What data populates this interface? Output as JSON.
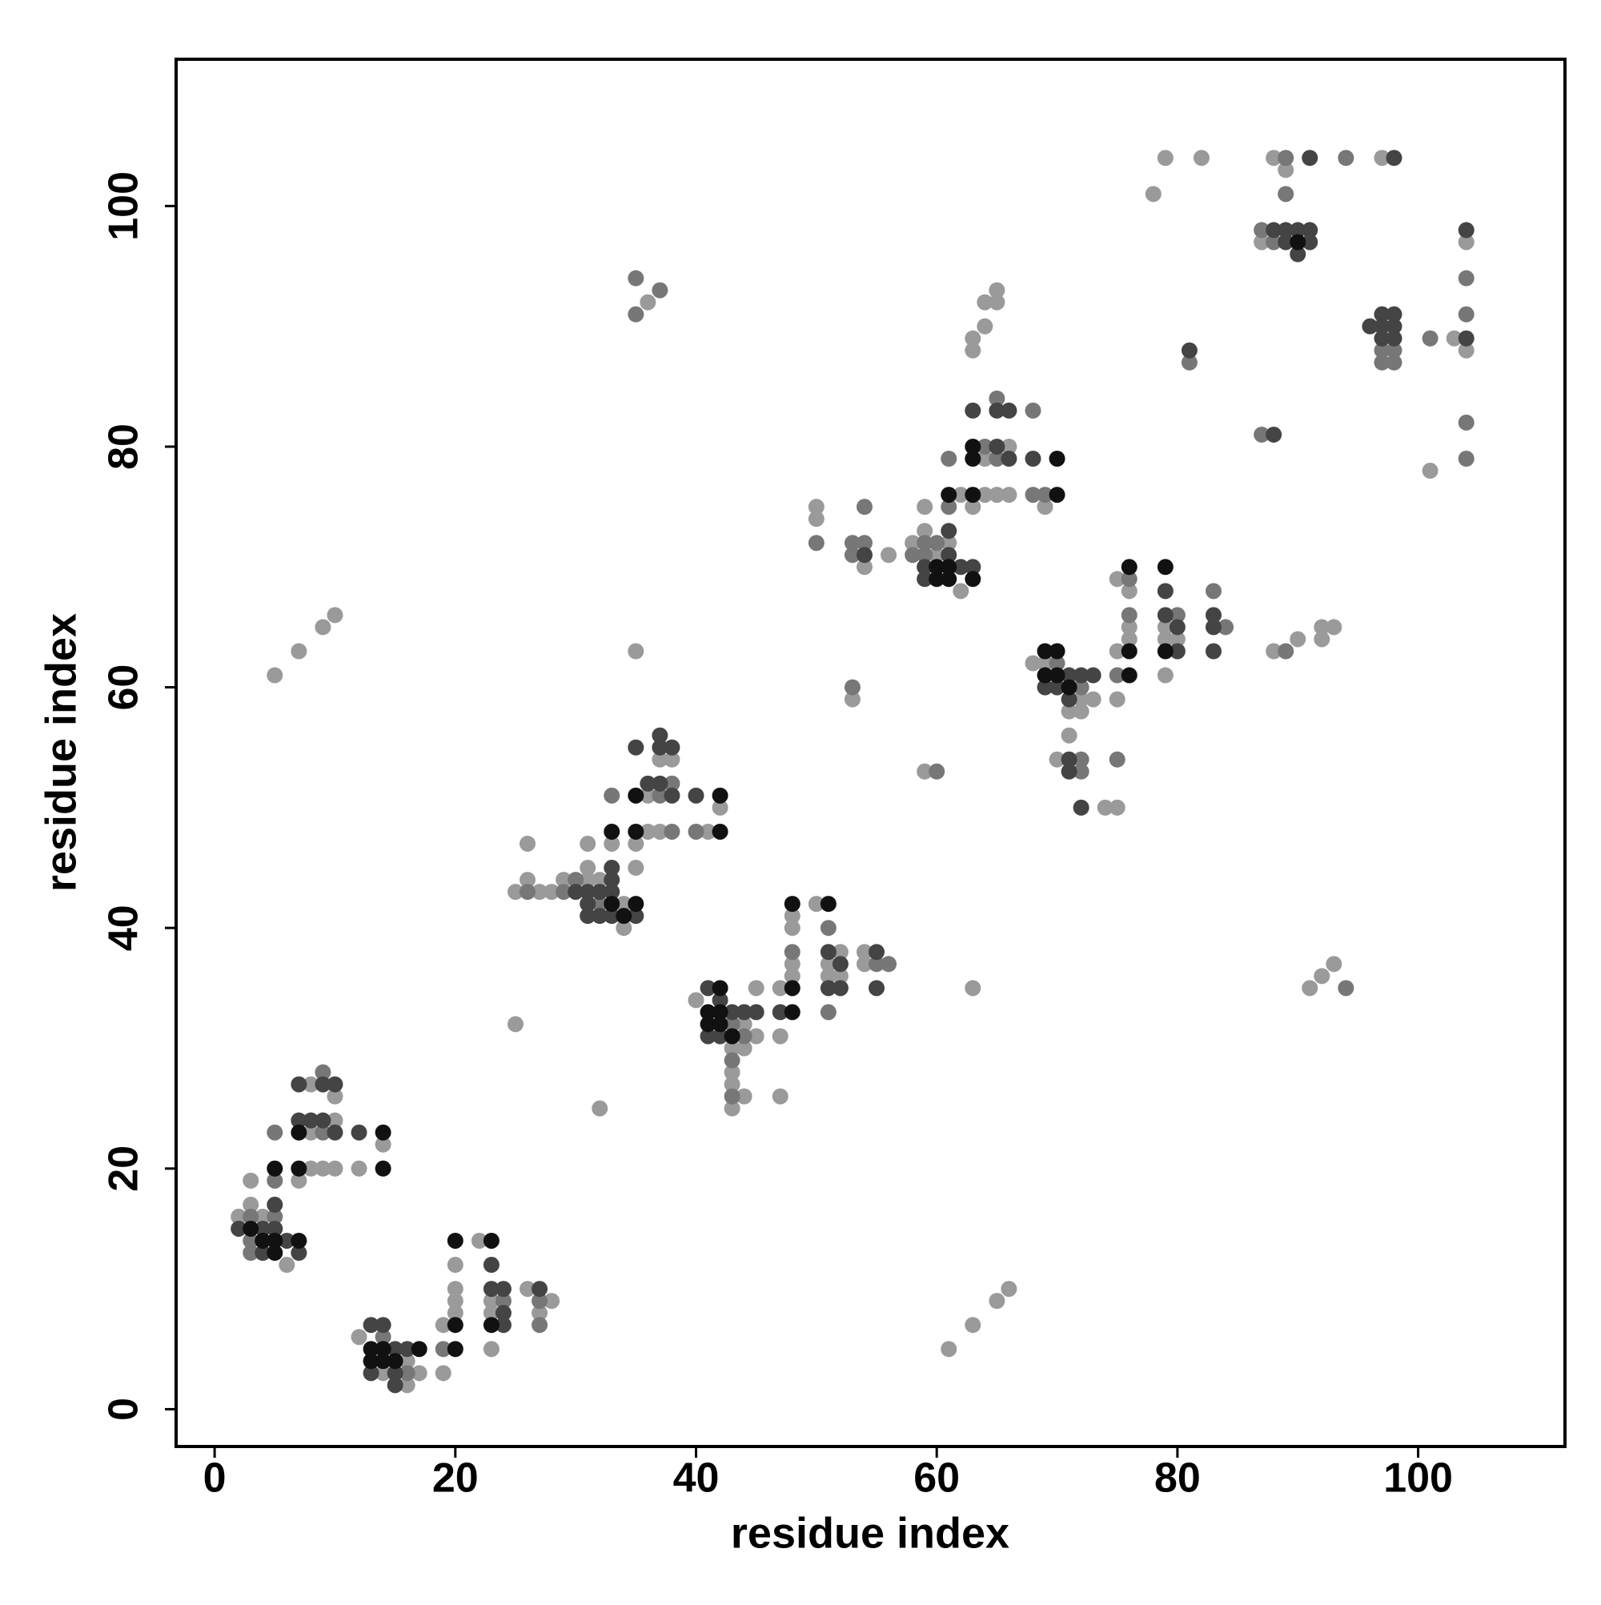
{
  "chart_data": {
    "type": "scatter",
    "xlabel": "residue index",
    "ylabel": "residue index",
    "xlim": [
      -3.2,
      112.2
    ],
    "ylim": [
      -3.1,
      112.2
    ],
    "xticks": [
      0,
      20,
      40,
      60,
      80,
      100
    ],
    "yticks": [
      0,
      20,
      40,
      60,
      80,
      100
    ],
    "series": [
      {
        "color": "#9a9a9a",
        "x": [
          2,
          3,
          3,
          4,
          6,
          7,
          8,
          8,
          8,
          9,
          10,
          10,
          10,
          12,
          14,
          12,
          14,
          16,
          16,
          17,
          19,
          19,
          20,
          20,
          20,
          20,
          22,
          23,
          23,
          23,
          26,
          27,
          28,
          25,
          26,
          26,
          27,
          28,
          29,
          31,
          31,
          31,
          32,
          33,
          34,
          34,
          35,
          35,
          36,
          36,
          37,
          37,
          38,
          41,
          42,
          35,
          36,
          5,
          7,
          9,
          10,
          25,
          32,
          40,
          43,
          43,
          43,
          43,
          44,
          44,
          44,
          45,
          45,
          47,
          47,
          47,
          48,
          48,
          48,
          48,
          50,
          51,
          51,
          52,
          52,
          54,
          54,
          50,
          50,
          54,
          56,
          58,
          59,
          59,
          60,
          61,
          62,
          53,
          59,
          62,
          63,
          63,
          63,
          64,
          64,
          64,
          64,
          65,
          65,
          65,
          66,
          66,
          69,
          63,
          61,
          63,
          65,
          66,
          68,
          69,
          71,
          71,
          70,
          72,
          72,
          73,
          74,
          75,
          75,
          75,
          75,
          76,
          76,
          76,
          79,
          79,
          79,
          80,
          78,
          79,
          82,
          88,
          90,
          92,
          92,
          93,
          91,
          92,
          93,
          88,
          89,
          97,
          87,
          103,
          104,
          104,
          101
        ],
        "y": [
          16,
          19,
          17,
          16,
          12,
          19,
          27,
          23,
          20,
          20,
          26,
          24,
          20,
          20,
          22,
          6,
          3,
          4,
          2,
          3,
          7,
          3,
          12,
          10,
          9,
          8,
          14,
          9,
          8,
          5,
          10,
          8,
          9,
          43,
          47,
          44,
          43,
          43,
          44,
          47,
          45,
          44,
          44,
          47,
          42,
          40,
          47,
          45,
          51,
          48,
          54,
          48,
          54,
          48,
          50,
          63,
          92,
          61,
          63,
          65,
          66,
          32,
          25,
          34,
          30,
          28,
          27,
          25,
          32,
          30,
          26,
          35,
          31,
          35,
          31,
          26,
          41,
          40,
          37,
          36,
          42,
          37,
          36,
          38,
          36,
          38,
          37,
          75,
          74,
          70,
          71,
          72,
          75,
          73,
          71,
          72,
          68,
          59,
          53,
          76,
          89,
          88,
          75,
          92,
          90,
          79,
          76,
          93,
          92,
          76,
          80,
          76,
          75,
          35,
          5,
          7,
          9,
          10,
          62,
          62,
          58,
          56,
          54,
          59,
          58,
          59,
          50,
          50,
          59,
          63,
          69,
          68,
          65,
          64,
          65,
          64,
          61,
          64,
          101,
          104,
          104,
          63,
          64,
          65,
          64,
          65,
          35,
          36,
          37,
          104,
          103,
          104,
          97,
          89,
          97,
          88,
          78
        ]
      },
      {
        "color": "#777777",
        "x": [
          3,
          3,
          3,
          5,
          5,
          5,
          9,
          9,
          14,
          16,
          19,
          24,
          27,
          27,
          26,
          29,
          30,
          32,
          33,
          37,
          38,
          38,
          40,
          35,
          35,
          37,
          43,
          43,
          43,
          44,
          48,
          51,
          51,
          55,
          56,
          50,
          53,
          53,
          54,
          54,
          58,
          59,
          59,
          60,
          53,
          60,
          61,
          61,
          64,
          65,
          65,
          68,
          68,
          69,
          70,
          72,
          72,
          72,
          75,
          75,
          76,
          76,
          80,
          83,
          84,
          81,
          87,
          89,
          94,
          89,
          89,
          94,
          87,
          88,
          97,
          97,
          98,
          98,
          101,
          104,
          104,
          104,
          104
        ],
        "y": [
          16,
          14,
          13,
          16,
          19,
          23,
          28,
          23,
          6,
          3,
          5,
          9,
          9,
          7,
          43,
          43,
          44,
          42,
          51,
          51,
          52,
          48,
          48,
          94,
          91,
          93,
          32,
          29,
          26,
          31,
          38,
          40,
          33,
          37,
          37,
          72,
          72,
          71,
          75,
          72,
          71,
          72,
          71,
          72,
          60,
          53,
          79,
          75,
          80,
          84,
          79,
          83,
          76,
          76,
          62,
          60,
          54,
          53,
          54,
          61,
          69,
          66,
          66,
          68,
          65,
          87,
          81,
          63,
          35,
          104,
          101,
          104,
          98,
          97,
          88,
          87,
          88,
          87,
          89,
          94,
          91,
          82,
          79
        ]
      },
      {
        "color": "#444444",
        "x": [
          2,
          4,
          4,
          5,
          5,
          6,
          7,
          7,
          7,
          8,
          9,
          9,
          10,
          10,
          12,
          13,
          13,
          14,
          15,
          15,
          15,
          16,
          23,
          23,
          24,
          24,
          24,
          27,
          30,
          31,
          31,
          31,
          32,
          32,
          33,
          33,
          33,
          33,
          35,
          35,
          36,
          37,
          37,
          37,
          38,
          38,
          40,
          41,
          41,
          42,
          42,
          43,
          44,
          45,
          47,
          51,
          51,
          52,
          52,
          55,
          55,
          54,
          59,
          59,
          61,
          61,
          62,
          63,
          63,
          65,
          65,
          66,
          66,
          68,
          69,
          70,
          71,
          71,
          71,
          71,
          72,
          72,
          73,
          79,
          79,
          80,
          80,
          83,
          83,
          83,
          81,
          88,
          91,
          98,
          88,
          89,
          89,
          90,
          90,
          91,
          91,
          96,
          97,
          97,
          97,
          98,
          98,
          98,
          104,
          104
        ],
        "y": [
          15,
          15,
          13,
          17,
          15,
          14,
          13,
          24,
          27,
          24,
          27,
          24,
          27,
          23,
          23,
          7,
          3,
          7,
          5,
          3,
          2,
          5,
          12,
          10,
          10,
          8,
          7,
          10,
          43,
          43,
          42,
          41,
          43,
          41,
          45,
          44,
          43,
          41,
          41,
          55,
          52,
          56,
          55,
          52,
          55,
          51,
          51,
          35,
          31,
          34,
          31,
          33,
          33,
          33,
          33,
          38,
          35,
          37,
          35,
          38,
          35,
          71,
          70,
          69,
          73,
          71,
          70,
          70,
          83,
          83,
          80,
          83,
          79,
          79,
          60,
          60,
          61,
          59,
          54,
          53,
          61,
          50,
          61,
          68,
          66,
          65,
          63,
          66,
          65,
          63,
          88,
          81,
          104,
          104,
          98,
          98,
          97,
          98,
          96,
          98,
          97,
          90,
          91,
          90,
          89,
          91,
          90,
          89,
          98,
          89
        ]
      },
      {
        "color": "#111111",
        "x": [
          3,
          4,
          5,
          5,
          5,
          7,
          7,
          7,
          14,
          14,
          13,
          13,
          14,
          14,
          15,
          17,
          20,
          20,
          20,
          23,
          23,
          33,
          33,
          34,
          35,
          35,
          35,
          42,
          42,
          41,
          41,
          42,
          42,
          42,
          43,
          48,
          48,
          48,
          51,
          60,
          60,
          61,
          61,
          63,
          61,
          63,
          63,
          63,
          70,
          70,
          69,
          69,
          70,
          70,
          71,
          76,
          76,
          76,
          79,
          79,
          90
        ],
        "y": [
          15,
          14,
          14,
          13,
          20,
          14,
          20,
          23,
          23,
          20,
          5,
          4,
          5,
          4,
          4,
          5,
          14,
          7,
          5,
          14,
          7,
          48,
          42,
          41,
          42,
          48,
          51,
          51,
          48,
          33,
          32,
          35,
          33,
          32,
          31,
          42,
          35,
          33,
          42,
          70,
          69,
          70,
          69,
          69,
          76,
          80,
          79,
          76,
          79,
          76,
          63,
          61,
          63,
          61,
          60,
          70,
          63,
          61,
          70,
          63,
          97
        ]
      }
    ]
  }
}
